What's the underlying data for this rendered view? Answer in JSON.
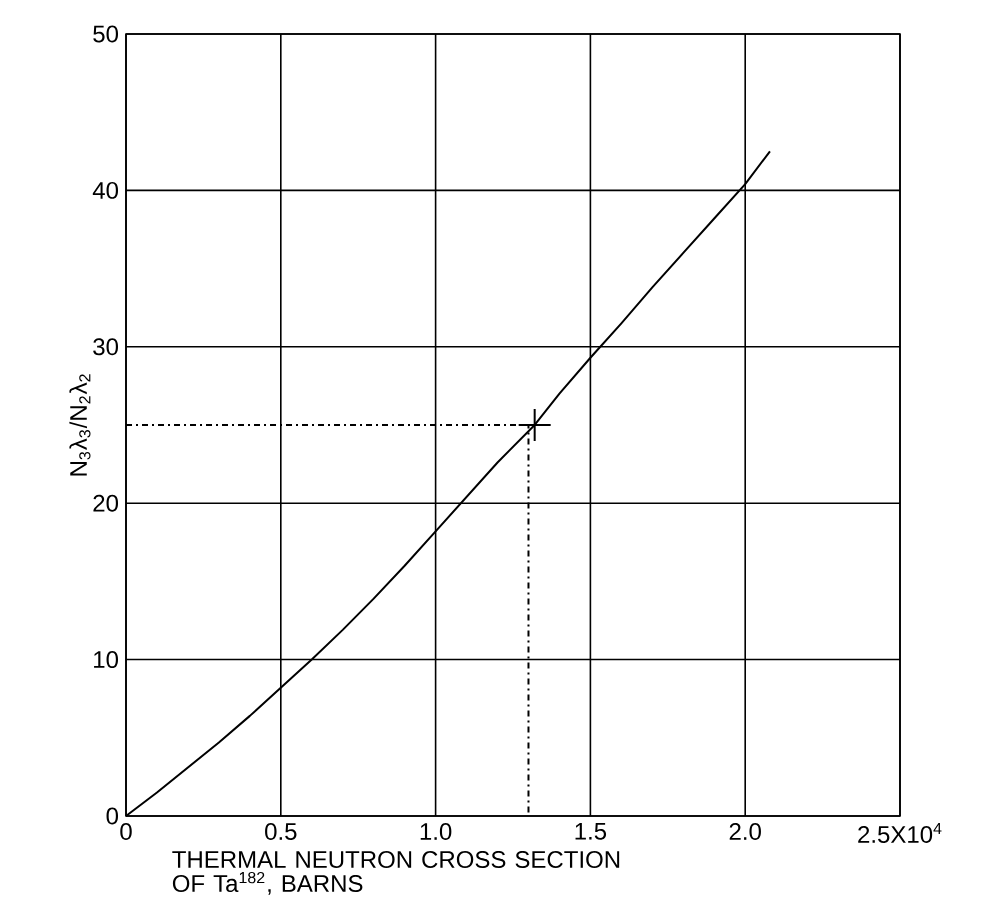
{
  "chart_data": {
    "type": "line",
    "xlabel": "THERMAL NEUTRON CROSS SECTION OF Ta$^{182}$, BARNS",
    "ylabel": "N$_{3}$λ$_{3}$/N$_{2}$λ$_{2}$",
    "xlim": [
      0,
      2.5
    ],
    "ylim": [
      0,
      50
    ],
    "xticks": [
      0,
      0.5,
      {
        "value": 1.0,
        "label": "1.0"
      },
      1.5,
      {
        "value": 2.0,
        "label": "2.0"
      },
      {
        "value": 2.5,
        "label": "2.5X10$^{4}$"
      }
    ],
    "yticks": [
      0,
      10,
      20,
      30,
      40,
      50
    ],
    "grid": true,
    "series": [
      {
        "color": "#000000",
        "line_style": "solid",
        "x": [
          0,
          0.1,
          0.2,
          0.3,
          0.4,
          0.5,
          0.6,
          0.7,
          0.8,
          0.9,
          1.0,
          1.1,
          1.2,
          1.32,
          1.4,
          1.5,
          1.6,
          1.7,
          1.8,
          1.9,
          2.0,
          2.08
        ],
        "values": [
          0,
          1.5,
          3.1,
          4.7,
          6.4,
          8.2,
          10,
          11.9,
          13.9,
          16,
          18.2,
          20.4,
          22.6,
          25,
          27,
          29.3,
          31.5,
          33.8,
          36,
          38.2,
          40.4,
          42.5
        ]
      },
      {
        "type": "line",
        "color": "#000000",
        "line_style": "dashed",
        "x": [
          0,
          1.3,
          1.3
        ],
        "values": [
          25,
          25,
          0
        ]
      },
      {
        "type": "scatter",
        "color": "#000000",
        "marker": "cross",
        "x": [
          1.32
        ],
        "values": [
          25
        ]
      }
    ]
  }
}
